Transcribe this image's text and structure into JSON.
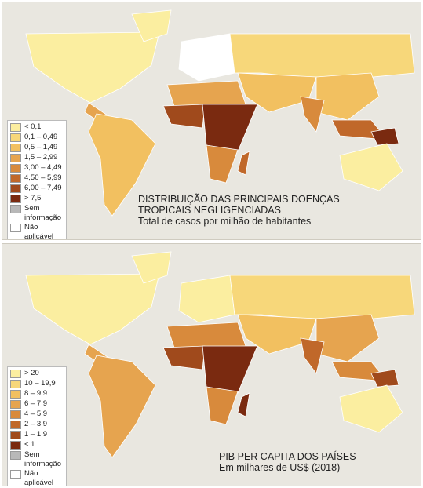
{
  "maps": [
    {
      "title_lines": [
        "DISTRIBUIÇÃO DAS PRINCIPAIS DOENÇAS",
        "TROPICAIS NEGLIGENCIADAS"
      ],
      "subtitle": "Total de casos por milhão de habitantes",
      "legend": [
        {
          "label": "< 0,1",
          "color": "#fbeea0"
        },
        {
          "label": "0,1 – 0,49",
          "color": "#f7d77a"
        },
        {
          "label": "0,5 – 1,49",
          "color": "#f2c060"
        },
        {
          "label": "1,5 – 2,99",
          "color": "#e6a44f"
        },
        {
          "label": "3,00 – 4,49",
          "color": "#d88a3c"
        },
        {
          "label": "4,50 – 5,99",
          "color": "#c0682a"
        },
        {
          "label": "6,00 – 7,49",
          "color": "#a04a1c"
        },
        {
          "label": "> 7,5",
          "color": "#7a2a10"
        },
        {
          "label": "Sem informação",
          "color": "#b8b8b8"
        },
        {
          "label": "Não aplicável",
          "color": "#ffffff"
        }
      ]
    },
    {
      "title_lines": [
        "PIB PER CAPITA DOS PAÍSES"
      ],
      "subtitle": "Em milhares de US$ (2018)",
      "legend": [
        {
          "label": "> 20",
          "color": "#fbeea0"
        },
        {
          "label": "10 – 19,9",
          "color": "#f7d77a"
        },
        {
          "label": "8 – 9,9",
          "color": "#f2c060"
        },
        {
          "label": "6 – 7,9",
          "color": "#e6a44f"
        },
        {
          "label": "4 – 5,9",
          "color": "#d88a3c"
        },
        {
          "label": "2 – 3,9",
          "color": "#c0682a"
        },
        {
          "label": "1 – 1,9",
          "color": "#a04a1c"
        },
        {
          "label": "< 1",
          "color": "#7a2a10"
        },
        {
          "label": "Sem informação",
          "color": "#b8b8b8"
        },
        {
          "label": "Não aplicável",
          "color": "#ffffff"
        }
      ]
    }
  ]
}
